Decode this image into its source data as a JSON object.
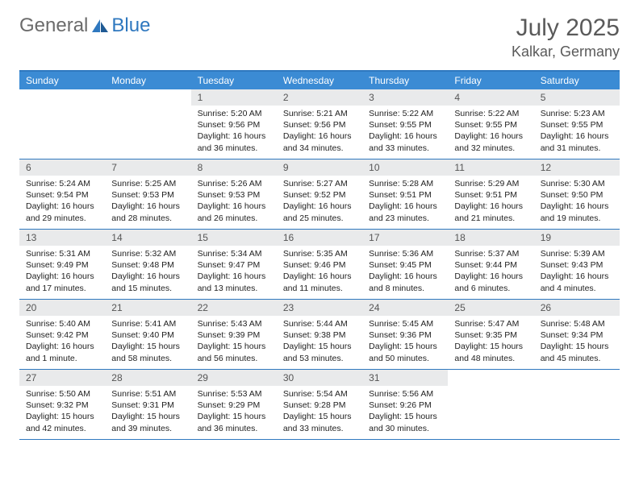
{
  "logo": {
    "text1": "General",
    "text2": "Blue"
  },
  "title": "July 2025",
  "location": "Kalkar, Germany",
  "colors": {
    "header_bar": "#3b8bd4",
    "border": "#2f78bf",
    "daynum_bg": "#e9eaeb",
    "text": "#333333",
    "logo_gray": "#6b6b6b",
    "logo_blue": "#2f78bf"
  },
  "dow": [
    "Sunday",
    "Monday",
    "Tuesday",
    "Wednesday",
    "Thursday",
    "Friday",
    "Saturday"
  ],
  "weeks": [
    [
      {
        "n": "",
        "sr": "",
        "ss": "",
        "dl": ""
      },
      {
        "n": "",
        "sr": "",
        "ss": "",
        "dl": ""
      },
      {
        "n": "1",
        "sr": "Sunrise: 5:20 AM",
        "ss": "Sunset: 9:56 PM",
        "dl": "Daylight: 16 hours and 36 minutes."
      },
      {
        "n": "2",
        "sr": "Sunrise: 5:21 AM",
        "ss": "Sunset: 9:56 PM",
        "dl": "Daylight: 16 hours and 34 minutes."
      },
      {
        "n": "3",
        "sr": "Sunrise: 5:22 AM",
        "ss": "Sunset: 9:55 PM",
        "dl": "Daylight: 16 hours and 33 minutes."
      },
      {
        "n": "4",
        "sr": "Sunrise: 5:22 AM",
        "ss": "Sunset: 9:55 PM",
        "dl": "Daylight: 16 hours and 32 minutes."
      },
      {
        "n": "5",
        "sr": "Sunrise: 5:23 AM",
        "ss": "Sunset: 9:55 PM",
        "dl": "Daylight: 16 hours and 31 minutes."
      }
    ],
    [
      {
        "n": "6",
        "sr": "Sunrise: 5:24 AM",
        "ss": "Sunset: 9:54 PM",
        "dl": "Daylight: 16 hours and 29 minutes."
      },
      {
        "n": "7",
        "sr": "Sunrise: 5:25 AM",
        "ss": "Sunset: 9:53 PM",
        "dl": "Daylight: 16 hours and 28 minutes."
      },
      {
        "n": "8",
        "sr": "Sunrise: 5:26 AM",
        "ss": "Sunset: 9:53 PM",
        "dl": "Daylight: 16 hours and 26 minutes."
      },
      {
        "n": "9",
        "sr": "Sunrise: 5:27 AM",
        "ss": "Sunset: 9:52 PM",
        "dl": "Daylight: 16 hours and 25 minutes."
      },
      {
        "n": "10",
        "sr": "Sunrise: 5:28 AM",
        "ss": "Sunset: 9:51 PM",
        "dl": "Daylight: 16 hours and 23 minutes."
      },
      {
        "n": "11",
        "sr": "Sunrise: 5:29 AM",
        "ss": "Sunset: 9:51 PM",
        "dl": "Daylight: 16 hours and 21 minutes."
      },
      {
        "n": "12",
        "sr": "Sunrise: 5:30 AM",
        "ss": "Sunset: 9:50 PM",
        "dl": "Daylight: 16 hours and 19 minutes."
      }
    ],
    [
      {
        "n": "13",
        "sr": "Sunrise: 5:31 AM",
        "ss": "Sunset: 9:49 PM",
        "dl": "Daylight: 16 hours and 17 minutes."
      },
      {
        "n": "14",
        "sr": "Sunrise: 5:32 AM",
        "ss": "Sunset: 9:48 PM",
        "dl": "Daylight: 16 hours and 15 minutes."
      },
      {
        "n": "15",
        "sr": "Sunrise: 5:34 AM",
        "ss": "Sunset: 9:47 PM",
        "dl": "Daylight: 16 hours and 13 minutes."
      },
      {
        "n": "16",
        "sr": "Sunrise: 5:35 AM",
        "ss": "Sunset: 9:46 PM",
        "dl": "Daylight: 16 hours and 11 minutes."
      },
      {
        "n": "17",
        "sr": "Sunrise: 5:36 AM",
        "ss": "Sunset: 9:45 PM",
        "dl": "Daylight: 16 hours and 8 minutes."
      },
      {
        "n": "18",
        "sr": "Sunrise: 5:37 AM",
        "ss": "Sunset: 9:44 PM",
        "dl": "Daylight: 16 hours and 6 minutes."
      },
      {
        "n": "19",
        "sr": "Sunrise: 5:39 AM",
        "ss": "Sunset: 9:43 PM",
        "dl": "Daylight: 16 hours and 4 minutes."
      }
    ],
    [
      {
        "n": "20",
        "sr": "Sunrise: 5:40 AM",
        "ss": "Sunset: 9:42 PM",
        "dl": "Daylight: 16 hours and 1 minute."
      },
      {
        "n": "21",
        "sr": "Sunrise: 5:41 AM",
        "ss": "Sunset: 9:40 PM",
        "dl": "Daylight: 15 hours and 58 minutes."
      },
      {
        "n": "22",
        "sr": "Sunrise: 5:43 AM",
        "ss": "Sunset: 9:39 PM",
        "dl": "Daylight: 15 hours and 56 minutes."
      },
      {
        "n": "23",
        "sr": "Sunrise: 5:44 AM",
        "ss": "Sunset: 9:38 PM",
        "dl": "Daylight: 15 hours and 53 minutes."
      },
      {
        "n": "24",
        "sr": "Sunrise: 5:45 AM",
        "ss": "Sunset: 9:36 PM",
        "dl": "Daylight: 15 hours and 50 minutes."
      },
      {
        "n": "25",
        "sr": "Sunrise: 5:47 AM",
        "ss": "Sunset: 9:35 PM",
        "dl": "Daylight: 15 hours and 48 minutes."
      },
      {
        "n": "26",
        "sr": "Sunrise: 5:48 AM",
        "ss": "Sunset: 9:34 PM",
        "dl": "Daylight: 15 hours and 45 minutes."
      }
    ],
    [
      {
        "n": "27",
        "sr": "Sunrise: 5:50 AM",
        "ss": "Sunset: 9:32 PM",
        "dl": "Daylight: 15 hours and 42 minutes."
      },
      {
        "n": "28",
        "sr": "Sunrise: 5:51 AM",
        "ss": "Sunset: 9:31 PM",
        "dl": "Daylight: 15 hours and 39 minutes."
      },
      {
        "n": "29",
        "sr": "Sunrise: 5:53 AM",
        "ss": "Sunset: 9:29 PM",
        "dl": "Daylight: 15 hours and 36 minutes."
      },
      {
        "n": "30",
        "sr": "Sunrise: 5:54 AM",
        "ss": "Sunset: 9:28 PM",
        "dl": "Daylight: 15 hours and 33 minutes."
      },
      {
        "n": "31",
        "sr": "Sunrise: 5:56 AM",
        "ss": "Sunset: 9:26 PM",
        "dl": "Daylight: 15 hours and 30 minutes."
      },
      {
        "n": "",
        "sr": "",
        "ss": "",
        "dl": ""
      },
      {
        "n": "",
        "sr": "",
        "ss": "",
        "dl": ""
      }
    ]
  ]
}
